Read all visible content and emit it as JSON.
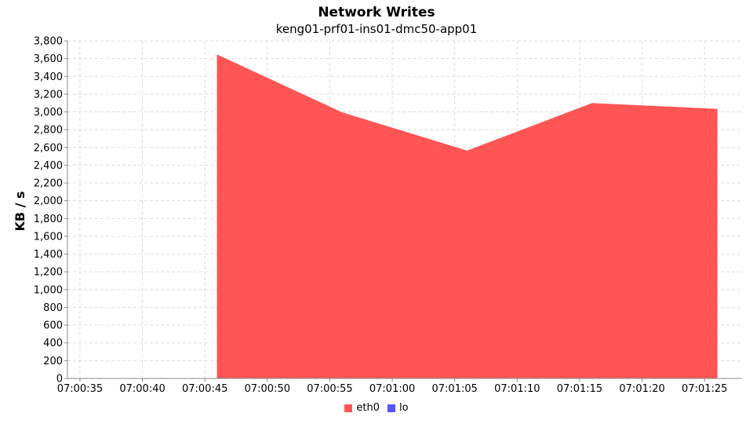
{
  "chart_data": {
    "type": "area",
    "title": "Network Writes",
    "subtitle": "keng01-prf01-ins01-dmc50-app01",
    "xlabel": "",
    "ylabel": "KB / s",
    "ylim": [
      0,
      3800
    ],
    "y_ticks": [
      0,
      200,
      400,
      600,
      800,
      1000,
      1200,
      1400,
      1600,
      1800,
      2000,
      2200,
      2400,
      2600,
      2800,
      3000,
      3200,
      3400,
      3600,
      3800
    ],
    "y_tick_labels": [
      "0",
      "200",
      "400",
      "600",
      "800",
      "1,000",
      "1,200",
      "1,400",
      "1,600",
      "1,800",
      "2,000",
      "2,200",
      "2,400",
      "2,600",
      "2,800",
      "3,000",
      "3,200",
      "3,400",
      "3,600",
      "3,800"
    ],
    "x_ticks": [
      "07:00:35",
      "07:00:40",
      "07:00:45",
      "07:00:50",
      "07:00:55",
      "07:01:00",
      "07:01:05",
      "07:01:10",
      "07:01:15",
      "07:01:20",
      "07:01:25"
    ],
    "xlim": [
      "07:00:34",
      "07:01:28"
    ],
    "grid": true,
    "legend_position": "bottom",
    "series": [
      {
        "name": "eth0",
        "color": "#ff5555",
        "x": [
          "07:00:46",
          "07:00:56",
          "07:01:06",
          "07:01:16",
          "07:01:26"
        ],
        "values": [
          3640,
          2990,
          2560,
          3095,
          3030
        ]
      },
      {
        "name": "lo",
        "color": "#5555ff",
        "x": [
          "07:00:46",
          "07:00:56",
          "07:01:06",
          "07:01:16",
          "07:01:26"
        ],
        "values": [
          0,
          0,
          0,
          0,
          0
        ]
      }
    ]
  }
}
